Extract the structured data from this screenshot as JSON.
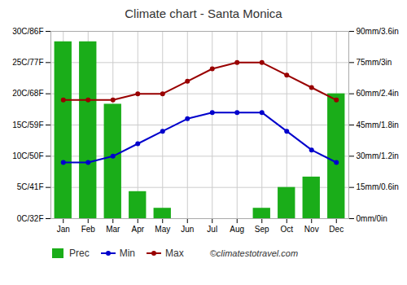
{
  "chart_data": {
    "type": "combo",
    "title": "Climate chart - Santa Monica",
    "categories": [
      "Jan",
      "Feb",
      "Mar",
      "Apr",
      "May",
      "Jun",
      "Jul",
      "Aug",
      "Sep",
      "Oct",
      "Nov",
      "Dec"
    ],
    "series": [
      {
        "name": "Prec",
        "type": "bar",
        "axis": "y2",
        "color": "#1aad19",
        "values": [
          85,
          85,
          55,
          13,
          5,
          0,
          0,
          0,
          5,
          15,
          20,
          60
        ]
      },
      {
        "name": "Min",
        "type": "line",
        "marker": "circle",
        "color": "#0000cc",
        "values": [
          9,
          9,
          10,
          12,
          14,
          16,
          17,
          17,
          17,
          14,
          11,
          9
        ]
      },
      {
        "name": "Max",
        "type": "line",
        "marker": "circle",
        "color": "#990000",
        "values": [
          19,
          19,
          19,
          20,
          20,
          22,
          24,
          25,
          25,
          23,
          21,
          19
        ]
      }
    ],
    "ylim": [
      0,
      30
    ],
    "yticks": [
      {
        "value": 0,
        "label": "0C/32F"
      },
      {
        "value": 5,
        "label": "5C/41F"
      },
      {
        "value": 10,
        "label": "10C/50F"
      },
      {
        "value": 15,
        "label": "15C/59F"
      },
      {
        "value": 20,
        "label": "20C/68F"
      },
      {
        "value": 25,
        "label": "25C/77F"
      },
      {
        "value": 30,
        "label": "30C/86F"
      }
    ],
    "y2lim": [
      0,
      90
    ],
    "y2ticks": [
      {
        "value": 0,
        "label": "0mm/0in"
      },
      {
        "value": 15,
        "label": "15mm/0.6in"
      },
      {
        "value": 30,
        "label": "30mm/1.2in"
      },
      {
        "value": 45,
        "label": "45mm/1.8in"
      },
      {
        "value": 60,
        "label": "60mm/2.4in"
      },
      {
        "value": 75,
        "label": "75mm/3in"
      },
      {
        "value": 90,
        "label": "90mm/3.6in"
      }
    ],
    "grid": true,
    "legend": "bottom",
    "annotations": [
      "©climatestotravel.com"
    ]
  }
}
